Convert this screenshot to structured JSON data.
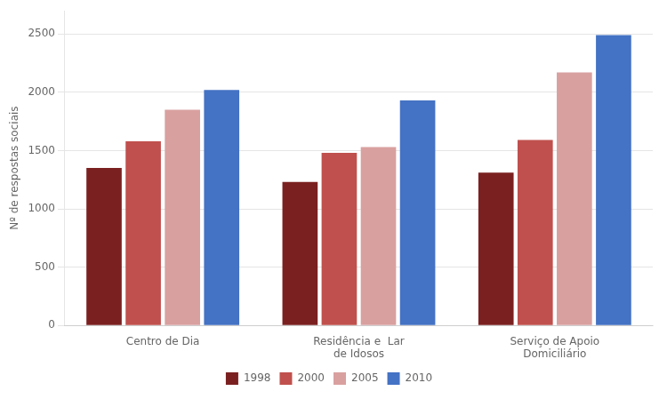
{
  "chart_data": {
    "type": "bar",
    "categories": [
      "Centro de Dia",
      "Residência e  Lar\nde Idosos",
      "Serviço de Apoio\nDomiciliário"
    ],
    "series": [
      {
        "name": "1998",
        "color": "#7B2020",
        "values": [
          1350,
          1230,
          1310
        ]
      },
      {
        "name": "2000",
        "color": "#C0504D",
        "values": [
          1580,
          1480,
          1590
        ]
      },
      {
        "name": "2005",
        "color": "#D9A0A0",
        "values": [
          1850,
          1530,
          2170
        ]
      },
      {
        "name": "2010",
        "color": "#4472C4",
        "values": [
          2020,
          1930,
          2490
        ]
      }
    ],
    "ylabel": "Nº de respostas sociais",
    "ylim": [
      0,
      2700
    ],
    "yticks": [
      0,
      500,
      1000,
      1500,
      2000,
      2500
    ],
    "grid": true,
    "legend": "bottom"
  }
}
